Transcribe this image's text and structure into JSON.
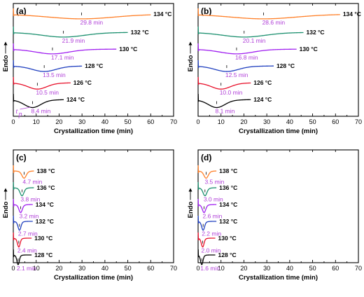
{
  "colors": {
    "orange": "#ff7f27",
    "teal": "#1a8f6e",
    "purple": "#a020f0",
    "blue": "#1f3fbf",
    "red": "#e8102a",
    "black": "#000000",
    "peak_label": "#b040d8"
  },
  "common": {
    "xlabel": "Crystallization time (min)",
    "ylabel": "Endo",
    "xticks": [
      "0",
      "10",
      "20",
      "30",
      "40",
      "50",
      "60",
      "70"
    ],
    "temp_unit": "°C",
    "tp_label": "t",
    "tp_sub": "p"
  },
  "chart_data": [
    {
      "panel": "(a)",
      "type": "line",
      "xlabel": "Crystallization time (min)",
      "ylabel": "Endo",
      "xlim": [
        0,
        70
      ],
      "grid": false,
      "series": [
        {
          "temperature": "134 °C",
          "peak_time_min": 29.8,
          "peak_label": "29.8 min",
          "end_time_min": 60,
          "color": "orange"
        },
        {
          "temperature": "132 °C",
          "peak_time_min": 21.9,
          "peak_label": "21.9 min",
          "end_time_min": 50,
          "color": "teal"
        },
        {
          "temperature": "130 °C",
          "peak_time_min": 17.1,
          "peak_label": "17.1 min",
          "end_time_min": 45,
          "color": "purple"
        },
        {
          "temperature": "128 °C",
          "peak_time_min": 13.5,
          "peak_label": "13.5 min",
          "end_time_min": 30,
          "color": "blue"
        },
        {
          "temperature": "126 °C",
          "peak_time_min": 10.5,
          "peak_label": "10.5 min",
          "end_time_min": 25,
          "color": "red"
        },
        {
          "temperature": "124 °C",
          "peak_time_min": 8.4,
          "peak_label": "8.4 min",
          "end_time_min": 22,
          "color": "black"
        }
      ]
    },
    {
      "panel": "(b)",
      "type": "line",
      "xlabel": "Crystallization time (min)",
      "ylabel": "Endo",
      "xlim": [
        0,
        70
      ],
      "grid": false,
      "series": [
        {
          "temperature": "134 °C",
          "peak_time_min": 28.6,
          "peak_label": "28.6 min",
          "end_time_min": 62,
          "color": "orange"
        },
        {
          "temperature": "132 °C",
          "peak_time_min": 20.1,
          "peak_label": "20.1 min",
          "end_time_min": 46,
          "color": "teal"
        },
        {
          "temperature": "130 °C",
          "peak_time_min": 16.8,
          "peak_label": "16.8 min",
          "end_time_min": 43,
          "color": "purple"
        },
        {
          "temperature": "128 °C",
          "peak_time_min": 12.5,
          "peak_label": "12.5 min",
          "end_time_min": 33,
          "color": "blue"
        },
        {
          "temperature": "126 °C",
          "peak_time_min": 10.0,
          "peak_label": "10.0 min",
          "end_time_min": 23,
          "color": "red"
        },
        {
          "temperature": "124 °C",
          "peak_time_min": 8.1,
          "peak_label": "8.1 min",
          "end_time_min": 23,
          "color": "black"
        }
      ]
    },
    {
      "panel": "(c)",
      "type": "line",
      "xlabel": "Crystallization time (min)",
      "ylabel": "Endo",
      "xlim": [
        0,
        70
      ],
      "grid": false,
      "series": [
        {
          "temperature": "138 °C",
          "peak_time_min": 4.7,
          "peak_label": "4.7 min",
          "end_time_min": 9,
          "color": "orange"
        },
        {
          "temperature": "136 °C",
          "peak_time_min": 3.8,
          "peak_label": "3.8 min",
          "end_time_min": 9,
          "color": "teal"
        },
        {
          "temperature": "134 °C",
          "peak_time_min": 3.2,
          "peak_label": "3.2 min",
          "end_time_min": 8.5,
          "color": "purple"
        },
        {
          "temperature": "132 °C",
          "peak_time_min": 2.7,
          "peak_label": "2.7 min",
          "end_time_min": 8.5,
          "color": "blue"
        },
        {
          "temperature": "130 °C",
          "peak_time_min": 2.4,
          "peak_label": "2.4 min",
          "end_time_min": 8,
          "color": "red"
        },
        {
          "temperature": "128 °C",
          "peak_time_min": 2.1,
          "peak_label": "2.1 min",
          "end_time_min": 8,
          "color": "black"
        }
      ]
    },
    {
      "panel": "(d)",
      "type": "line",
      "xlabel": "Crystallization time (min)",
      "ylabel": "Endo",
      "xlim": [
        0,
        70
      ],
      "grid": false,
      "series": [
        {
          "temperature": "138 °C",
          "peak_time_min": 3.5,
          "peak_label": "3.5 min",
          "end_time_min": 8,
          "color": "orange"
        },
        {
          "temperature": "136 °C",
          "peak_time_min": 3.0,
          "peak_label": "3.0 min",
          "end_time_min": 8,
          "color": "teal"
        },
        {
          "temperature": "134 °C",
          "peak_time_min": 2.6,
          "peak_label": "2.6 min",
          "end_time_min": 8,
          "color": "purple"
        },
        {
          "temperature": "132 °C",
          "peak_time_min": 2.2,
          "peak_label": "2.2 min",
          "end_time_min": 8,
          "color": "blue"
        },
        {
          "temperature": "130 °C",
          "peak_time_min": 2.0,
          "peak_label": "2.0 min",
          "end_time_min": 7.5,
          "color": "red"
        },
        {
          "temperature": "128 °C",
          "peak_time_min": 1.6,
          "peak_label": "1.6 min",
          "end_time_min": 7.5,
          "color": "black"
        }
      ]
    }
  ]
}
